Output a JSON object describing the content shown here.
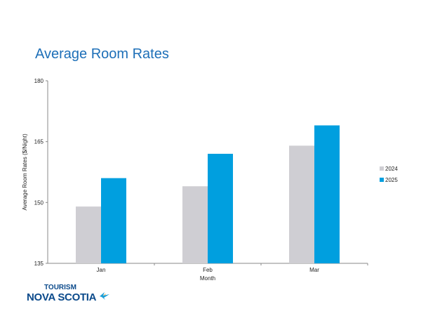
{
  "chart_data": {
    "type": "bar",
    "title": "Average Room Rates",
    "xlabel": "Month",
    "ylabel": "Average Room Rates ($/Night)",
    "categories": [
      "Jan",
      "Feb",
      "Mar"
    ],
    "series": [
      {
        "name": "2024",
        "values": [
          149,
          154,
          164
        ],
        "color": "#cfced3"
      },
      {
        "name": "2025",
        "values": [
          156,
          162,
          169
        ],
        "color": "#009fdf"
      }
    ],
    "ylim": [
      135,
      180
    ],
    "yticks": [
      "135",
      "150",
      "165",
      "180"
    ],
    "grid": false,
    "legend_position": "right"
  },
  "logo": {
    "line1": "TOURISM",
    "line2": "NOVA SCOTIA"
  },
  "colors": {
    "title": "#1d6fb8",
    "logo": "#0b4a8b"
  }
}
